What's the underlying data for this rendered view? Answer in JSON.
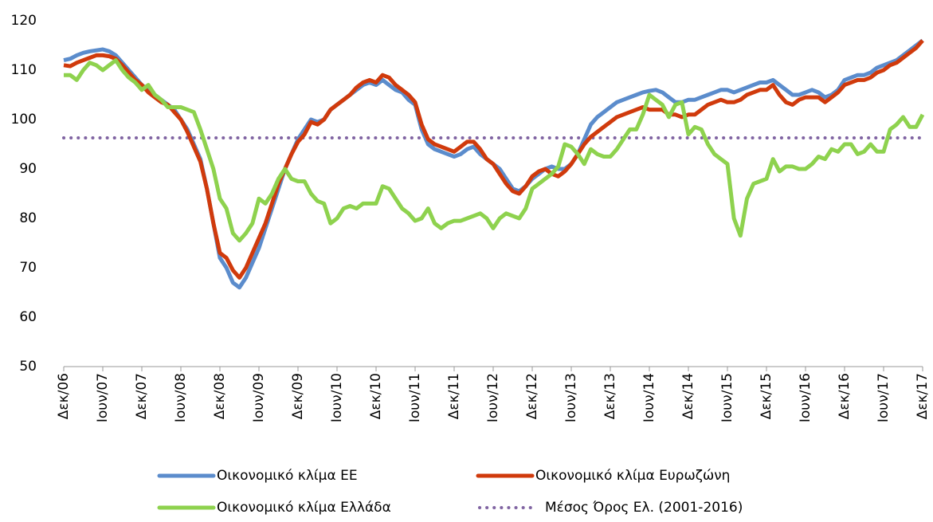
{
  "chart_data": {
    "type": "line",
    "categories": [
      "Δεκ/06",
      null,
      null,
      null,
      null,
      null,
      "Ιουν/07",
      null,
      null,
      null,
      null,
      null,
      "Δεκ/07",
      null,
      null,
      null,
      null,
      null,
      "Ιουν/08",
      null,
      null,
      null,
      null,
      null,
      "Δεκ/08",
      null,
      null,
      null,
      null,
      null,
      "Ιουν/09",
      null,
      null,
      null,
      null,
      null,
      "Δεκ/09",
      null,
      null,
      null,
      null,
      null,
      "Ιουν/10",
      null,
      null,
      null,
      null,
      null,
      "Δεκ/10",
      null,
      null,
      null,
      null,
      null,
      "Ιουν/11",
      null,
      null,
      null,
      null,
      null,
      "Δεκ/11",
      null,
      null,
      null,
      null,
      null,
      "Ιουν/12",
      null,
      null,
      null,
      null,
      null,
      "Δεκ/12",
      null,
      null,
      null,
      null,
      null,
      "Ιουν/13",
      null,
      null,
      null,
      null,
      null,
      "Δεκ/13",
      null,
      null,
      null,
      null,
      null,
      "Ιουν/14",
      null,
      null,
      null,
      null,
      null,
      "Δεκ/14",
      null,
      null,
      null,
      null,
      null,
      "Ιουν/15",
      null,
      null,
      null,
      null,
      null,
      "Δεκ/15",
      null,
      null,
      null,
      null,
      null,
      "Ιουν/16",
      null,
      null,
      null,
      null,
      null,
      "Δεκ/16",
      null,
      null,
      null,
      null,
      null,
      "Ιουν/17",
      null,
      null,
      null,
      null,
      null,
      "Δεκ/17"
    ],
    "series": [
      {
        "name": "Οικονομικό κλίμα ΕΕ",
        "color": "#5b8ccc",
        "values": [
          112,
          112.3,
          113,
          113.5,
          113.8,
          114,
          114.2,
          113.8,
          113,
          111.5,
          110,
          108.5,
          107,
          106,
          105,
          104,
          103,
          102,
          100,
          98,
          95,
          92,
          86,
          79,
          72,
          70,
          67,
          66,
          68,
          71,
          74,
          78,
          82,
          86,
          90,
          93,
          96,
          98,
          100,
          99.5,
          100,
          102,
          103,
          104,
          105,
          106,
          107,
          107.5,
          107,
          108,
          107,
          106,
          105.5,
          104,
          103,
          98,
          95,
          94,
          93.5,
          93,
          92.5,
          93,
          94,
          94.5,
          93,
          92,
          91,
          90,
          88,
          86,
          85.5,
          86.5,
          88,
          89,
          90,
          90.5,
          90,
          90,
          91,
          93,
          96,
          99,
          100.5,
          101.5,
          102.5,
          103.5,
          104,
          104.5,
          105,
          105.5,
          105.8,
          106,
          105.5,
          104.5,
          103.5,
          103.5,
          104,
          104,
          104.5,
          105,
          105.5,
          106,
          106,
          105.5,
          106,
          106.5,
          107,
          107.5,
          107.5,
          108,
          107,
          106,
          105,
          105,
          105.5,
          106,
          105.5,
          104.5,
          105,
          106,
          108,
          108.5,
          109,
          109,
          109.5,
          110.5,
          111,
          111.5,
          112,
          113,
          114,
          115,
          116
        ]
      },
      {
        "name": "Οικονομικό κλίμα Ευρωζώνη",
        "color": "#d03a0c",
        "values": [
          111,
          110.8,
          111.5,
          112,
          112.5,
          113,
          113,
          112.8,
          112.3,
          111,
          109.5,
          108,
          107,
          105.5,
          104.5,
          103.5,
          103,
          101.5,
          100,
          97.5,
          94.5,
          91.5,
          86,
          79,
          73,
          72,
          69.5,
          68,
          70,
          73,
          76,
          79,
          83,
          87,
          90,
          93,
          95.5,
          97,
          99.5,
          99,
          100,
          102,
          103,
          104,
          105,
          106.5,
          107.5,
          108,
          107.5,
          109,
          108.5,
          107,
          106,
          105,
          103.5,
          99,
          96,
          95,
          94.5,
          94,
          93.5,
          94.5,
          95.5,
          95.5,
          94,
          92,
          91,
          89,
          87,
          85.5,
          85,
          86.5,
          88.5,
          89.5,
          90,
          89,
          88.5,
          89.5,
          91,
          93,
          95,
          96.5,
          97.5,
          98.5,
          99.5,
          100.5,
          101,
          101.5,
          102,
          102.5,
          102,
          102,
          102,
          101,
          101,
          100.5,
          101,
          101,
          102,
          103,
          103.5,
          104,
          103.5,
          103.5,
          104,
          105,
          105.5,
          106,
          106,
          107,
          105,
          103.5,
          103,
          104,
          104.5,
          104.5,
          104.5,
          103.5,
          104.5,
          105.5,
          107,
          107.5,
          108,
          108,
          108.5,
          109.5,
          110,
          111,
          111.5,
          112.5,
          113.5,
          114.5,
          116
        ]
      },
      {
        "name": "Οικονομικό κλίμα Ελλάδα",
        "color": "#8ed24e",
        "values": [
          109,
          109,
          108,
          110,
          111.5,
          111,
          110,
          111,
          112,
          110,
          108.5,
          107.5,
          106,
          107,
          105,
          104,
          102.5,
          102.5,
          102.5,
          102,
          101.5,
          98,
          94,
          90,
          84,
          82,
          77,
          75.5,
          77,
          79,
          84,
          83,
          85,
          88,
          90,
          88,
          87.5,
          87.5,
          85,
          83.5,
          83,
          79,
          80,
          82,
          82.5,
          82,
          83,
          83,
          83,
          86.5,
          86,
          84,
          82,
          81,
          79.5,
          80,
          82,
          79,
          78,
          79,
          79.5,
          79.5,
          80,
          80.5,
          81,
          80,
          78,
          80,
          81,
          80.5,
          80,
          82,
          86,
          87,
          88,
          89,
          90.5,
          95,
          94.5,
          93,
          91,
          94,
          93,
          92.5,
          92.5,
          94,
          96,
          98,
          98,
          101,
          105,
          104,
          103,
          100.5,
          103,
          103.5,
          97,
          98.5,
          98,
          95,
          93,
          92,
          91,
          80,
          76.5,
          84,
          87,
          87.5,
          88,
          92,
          89.5,
          90.5,
          90.5,
          90,
          90,
          91,
          92.5,
          92,
          94,
          93.5,
          95,
          95,
          93,
          93.5,
          95,
          93.5,
          93.5,
          98,
          99,
          100.5,
          98.5,
          98.5,
          101
        ]
      }
    ],
    "reference_line": {
      "name": "Μέσος Όρος Ελ. (2001-2016)",
      "value": 96.3,
      "color": "#8064a2"
    },
    "ylim": [
      50,
      120
    ],
    "yticks": [
      50,
      60,
      70,
      80,
      90,
      100,
      110,
      120
    ],
    "grid": false
  }
}
